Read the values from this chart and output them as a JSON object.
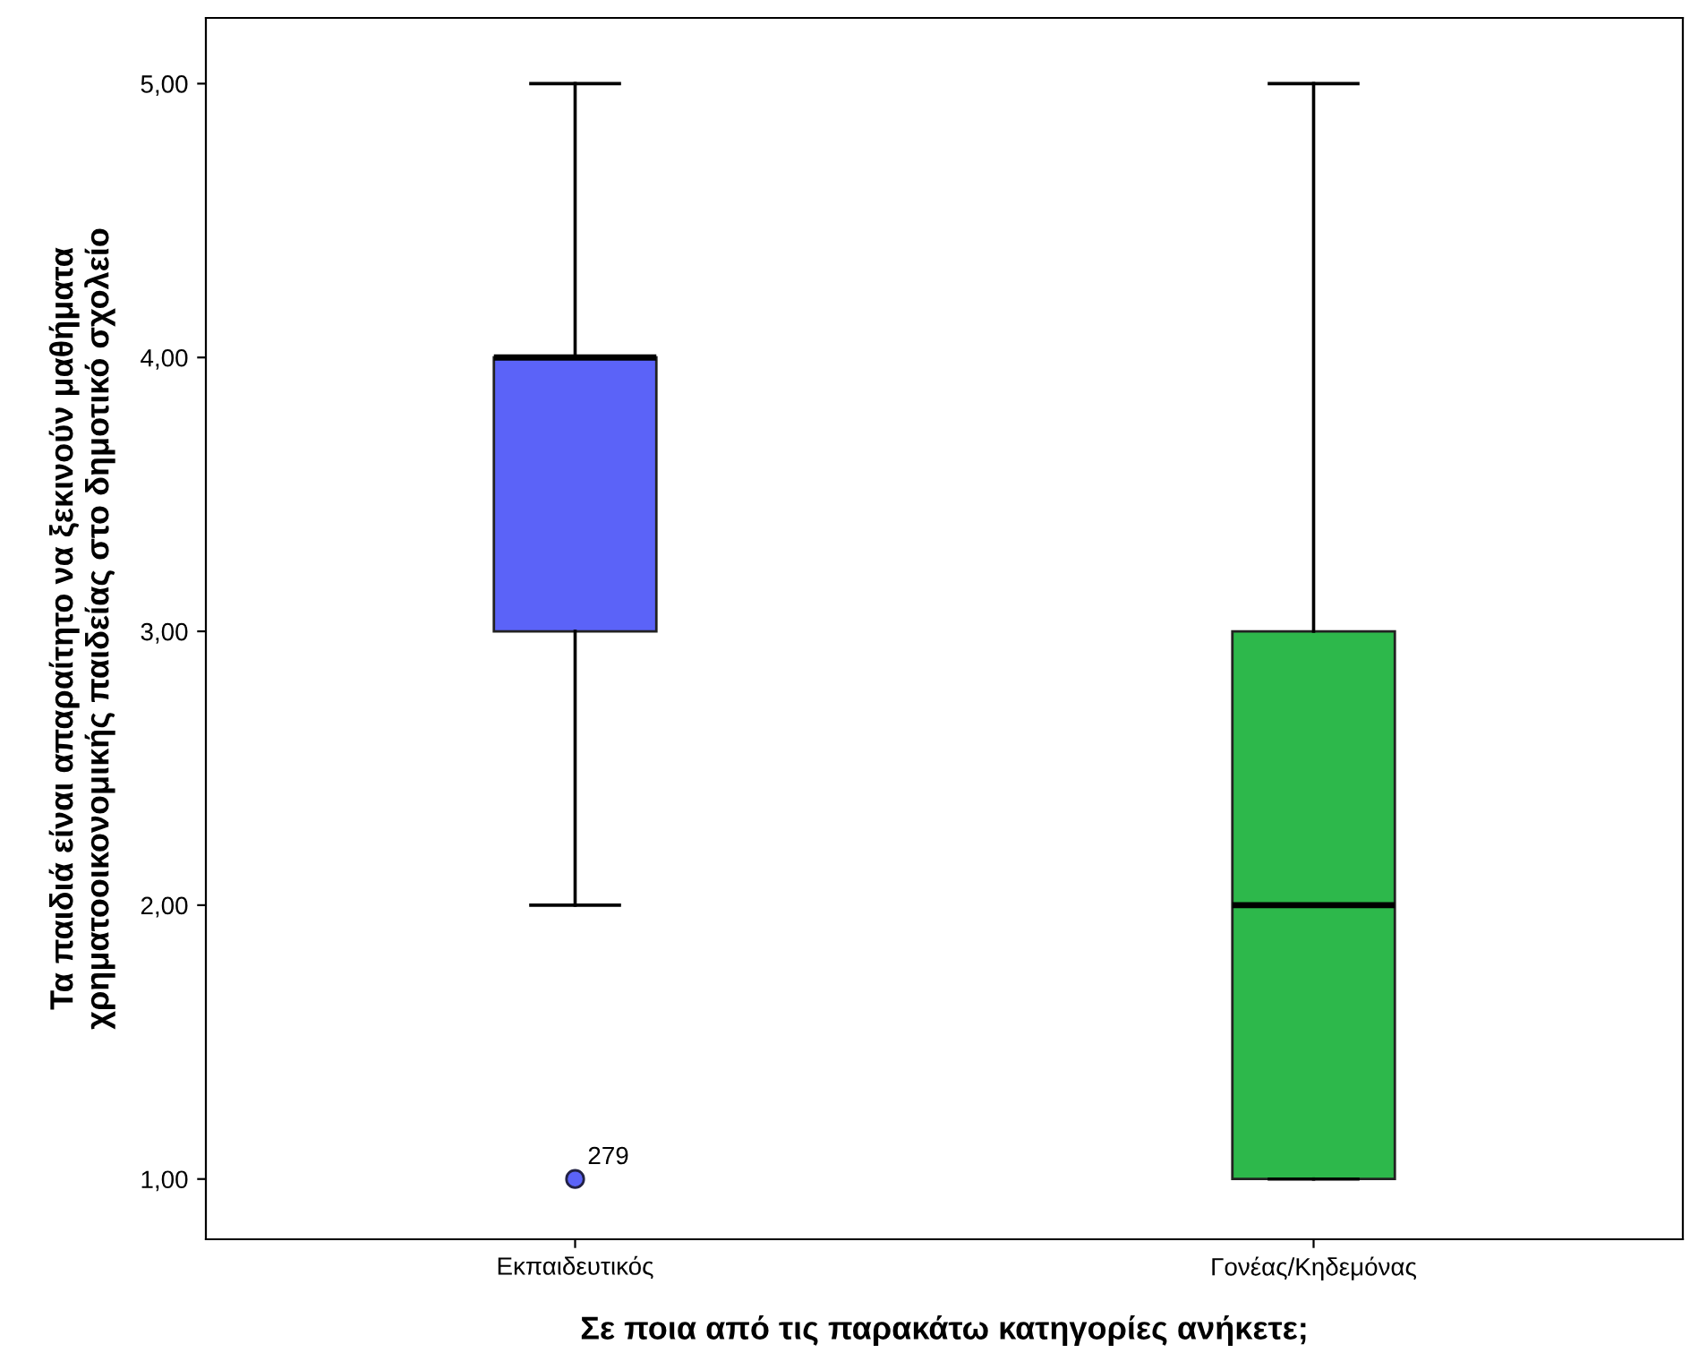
{
  "chart_data": {
    "type": "box",
    "categories": [
      "Εκπαιδευτικός",
      "Γονέας/Κηδεμόνας"
    ],
    "boxes": [
      {
        "low": 2,
        "q1": 3,
        "median": 4,
        "q3": 4,
        "high": 5,
        "outliers": [
          1
        ]
      },
      {
        "low": 1,
        "q1": 1,
        "median": 2,
        "q3": 3,
        "high": 5
      }
    ],
    "colors": [
      "#5b63f8",
      "#2db84b"
    ],
    "xlabel": "Σε ποια από τις παρακάτω κατηγορίες ανήκετε;",
    "ylabel": "Τα παιδιά είναι απαραίτητο να ξεκινούν μαθήματα\nχρηματοοικονομικής παιδείας στο δημοτικό σχολείο",
    "ylim": [
      0.78,
      5.24
    ],
    "yticks": [
      {
        "value": 1,
        "label": "1,00"
      },
      {
        "value": 2,
        "label": "2,00"
      },
      {
        "value": 3,
        "label": "3,00"
      },
      {
        "value": 4,
        "label": "4,00"
      },
      {
        "value": 5,
        "label": "5,00"
      }
    ],
    "annotations": [
      "279"
    ],
    "grid": false,
    "legend": false
  }
}
